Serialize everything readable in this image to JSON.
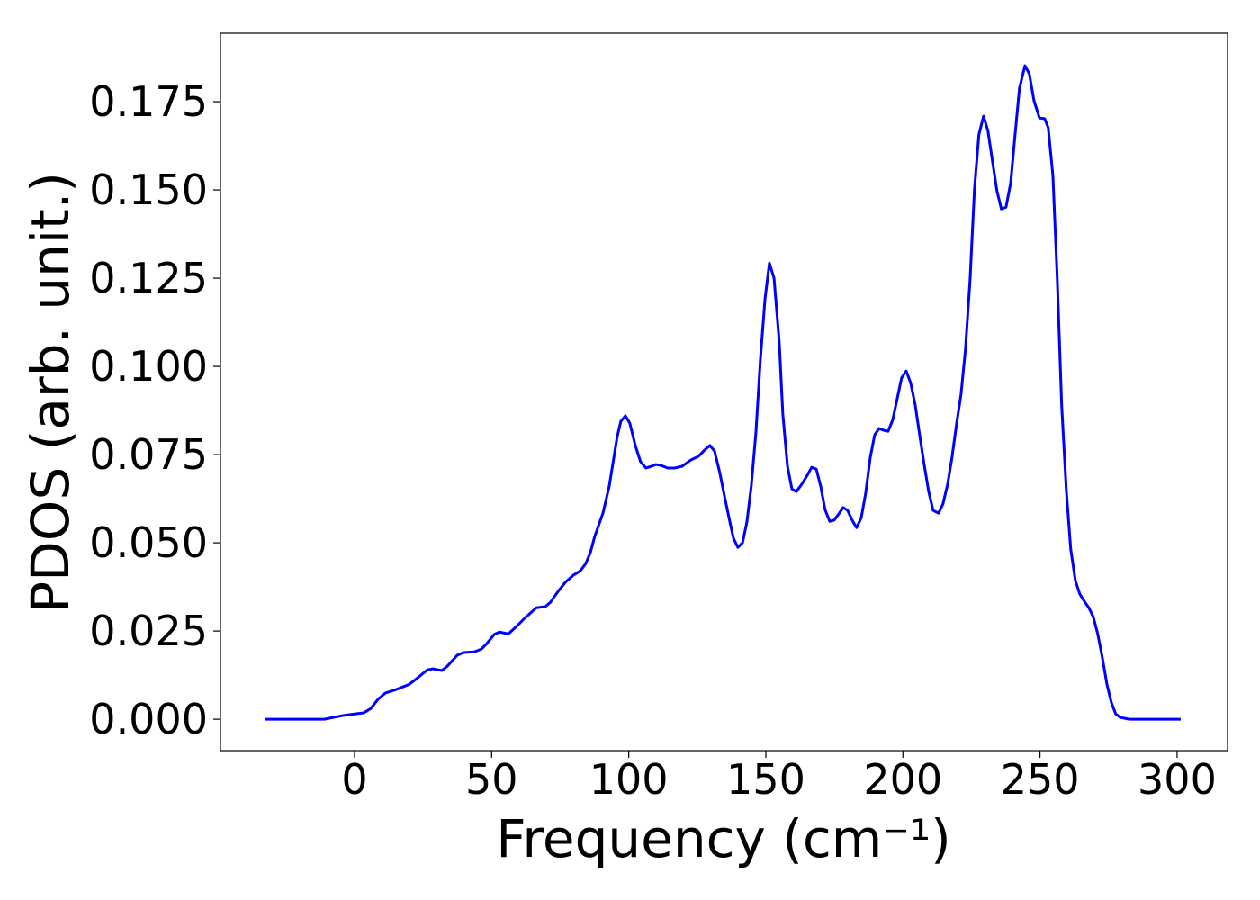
{
  "chart_data": {
    "type": "line",
    "xlabel": "Frequency (cm⁻¹)",
    "ylabel": "PDOS (arb. unit.)",
    "xlim": [
      -48.9,
      318.4
    ],
    "ylim": [
      -0.0089,
      0.1944
    ],
    "xticks": [
      0,
      50,
      100,
      150,
      200,
      250,
      300
    ],
    "yticks": [
      {
        "value": 0,
        "label": "0.000"
      },
      {
        "value": 0.025,
        "label": "0.025"
      },
      {
        "value": 0.05,
        "label": "0.050"
      },
      {
        "value": 0.075,
        "label": "0.075"
      },
      {
        "value": 0.1,
        "label": "0.100"
      },
      {
        "value": 0.125,
        "label": "0.125"
      },
      {
        "value": 0.15,
        "label": "0.150"
      },
      {
        "value": 0.175,
        "label": "0.175"
      }
    ],
    "color": "#0000ff",
    "x": [
      -32.5,
      -11,
      -4.6,
      0,
      3.3,
      5.9,
      8.5,
      11.2,
      15.1,
      20,
      22.6,
      26.6,
      28.6,
      31.8,
      33.8,
      37.4,
      39.7,
      43.6,
      46.3,
      48.2,
      50.9,
      52.8,
      56.1,
      59.1,
      62,
      66.3,
      69.6,
      71.5,
      74.2,
      77.1,
      79.8,
      82.4,
      84.3,
      86,
      87.6,
      90.6,
      92.9,
      95.8,
      97.1,
      98.8,
      100.4,
      102.4,
      104.3,
      106.3,
      108.3,
      109.9,
      111.9,
      114.2,
      116.8,
      119.5,
      122.7,
      125.4,
      127.7,
      129.6,
      131.3,
      133.2,
      135.2,
      136.9,
      138.2,
      139.8,
      141.5,
      143.1,
      144.7,
      146.4,
      148,
      149.7,
      151.3,
      153,
      154.9,
      156.2,
      157.9,
      159.5,
      161.1,
      163.1,
      165.1,
      166.7,
      168.4,
      170,
      171.6,
      173.3,
      174.9,
      176.6,
      178.2,
      179.8,
      181.5,
      183.1,
      184.8,
      186.4,
      188.1,
      189.7,
      191.3,
      193,
      194.6,
      196.3,
      197.9,
      199.5,
      201.2,
      202.8,
      204.5,
      206.1,
      207.7,
      209.4,
      211,
      213,
      214.6,
      216.3,
      217.9,
      219.6,
      221.2,
      222.8,
      224.5,
      226.1,
      227.7,
      229.4,
      231,
      232.7,
      234.3,
      235.9,
      237.6,
      239.3,
      240.9,
      242.5,
      244.5,
      246.1,
      247.8,
      249.8,
      251.7,
      253,
      254.7,
      256.3,
      257.9,
      259.6,
      261.2,
      262.9,
      264.5,
      266.2,
      267.8,
      269.4,
      271.1,
      272.7,
      274.4,
      276,
      277.6,
      279.3,
      282.6,
      301.3
    ],
    "values": [
      0,
      0,
      0.001,
      0.0015,
      0.0018,
      0.003,
      0.0056,
      0.0074,
      0.0084,
      0.0099,
      0.0115,
      0.014,
      0.0143,
      0.0138,
      0.015,
      0.0181,
      0.0189,
      0.0191,
      0.0199,
      0.0214,
      0.024,
      0.0247,
      0.0242,
      0.0263,
      0.0286,
      0.0316,
      0.0319,
      0.0332,
      0.0362,
      0.039,
      0.0408,
      0.0421,
      0.0441,
      0.0472,
      0.0518,
      0.0584,
      0.0661,
      0.0801,
      0.0844,
      0.086,
      0.0839,
      0.0776,
      0.073,
      0.0712,
      0.0717,
      0.0722,
      0.0719,
      0.0712,
      0.0712,
      0.0717,
      0.0735,
      0.0745,
      0.0763,
      0.0776,
      0.076,
      0.0699,
      0.0622,
      0.0559,
      0.0513,
      0.0487,
      0.05,
      0.0559,
      0.0661,
      0.0814,
      0.1018,
      0.1191,
      0.1293,
      0.125,
      0.1069,
      0.0865,
      0.0717,
      0.0653,
      0.0645,
      0.0666,
      0.0691,
      0.0714,
      0.0709,
      0.0661,
      0.0594,
      0.0561,
      0.0564,
      0.0582,
      0.06,
      0.0592,
      0.0564,
      0.0543,
      0.0571,
      0.064,
      0.0742,
      0.0806,
      0.0824,
      0.0819,
      0.0816,
      0.0849,
      0.0908,
      0.0967,
      0.0987,
      0.0954,
      0.089,
      0.0806,
      0.0724,
      0.0645,
      0.0592,
      0.0584,
      0.061,
      0.0666,
      0.0742,
      0.0839,
      0.0921,
      0.1048,
      0.1247,
      0.1503,
      0.1656,
      0.1709,
      0.1668,
      0.1579,
      0.1497,
      0.1446,
      0.1451,
      0.152,
      0.1656,
      0.1788,
      0.1852,
      0.1829,
      0.1753,
      0.1704,
      0.1702,
      0.1676,
      0.1541,
      0.1247,
      0.089,
      0.0648,
      0.0482,
      0.0393,
      0.0355,
      0.0334,
      0.0316,
      0.0291,
      0.024,
      0.0176,
      0.0099,
      0.0048,
      0.0015,
      0.0005,
      0,
      0
    ]
  }
}
